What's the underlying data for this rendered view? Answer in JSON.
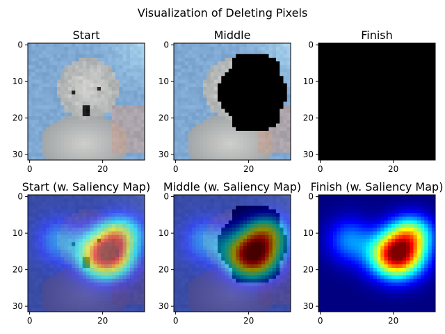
{
  "figure": {
    "title": "Visualization of Deleting Pixels"
  },
  "panels": [
    {
      "title": "Start",
      "kind": "dog"
    },
    {
      "title": "Middle",
      "kind": "dog-deleted"
    },
    {
      "title": "Finish",
      "kind": "black"
    },
    {
      "title": "Start (w. Saliency Map)",
      "kind": "dog-saliency"
    },
    {
      "title": "Middle (w. Saliency Map)",
      "kind": "dog-deleted-saliency"
    },
    {
      "title": "Finish (w. Saliency Map)",
      "kind": "saliency-only"
    }
  ],
  "axes": {
    "xticks": [
      "0",
      "20"
    ],
    "yticks": [
      "0",
      "10",
      "20",
      "30"
    ],
    "xtick_values": [
      0,
      20
    ],
    "ytick_values": [
      0,
      10,
      20,
      30
    ],
    "pixel_range": [
      -0.5,
      31.5
    ]
  },
  "colors": {
    "dog_fur": "#d8d8d4",
    "dog_shadow": "#8c9296",
    "background_blue": "#7fa9d3",
    "sky_light": "#a9d4ee",
    "skin": "#c8a090",
    "deleted": "#000000",
    "jet_low": "#0000ff",
    "jet_mid": "#ffff00",
    "jet_high": "#800000"
  }
}
